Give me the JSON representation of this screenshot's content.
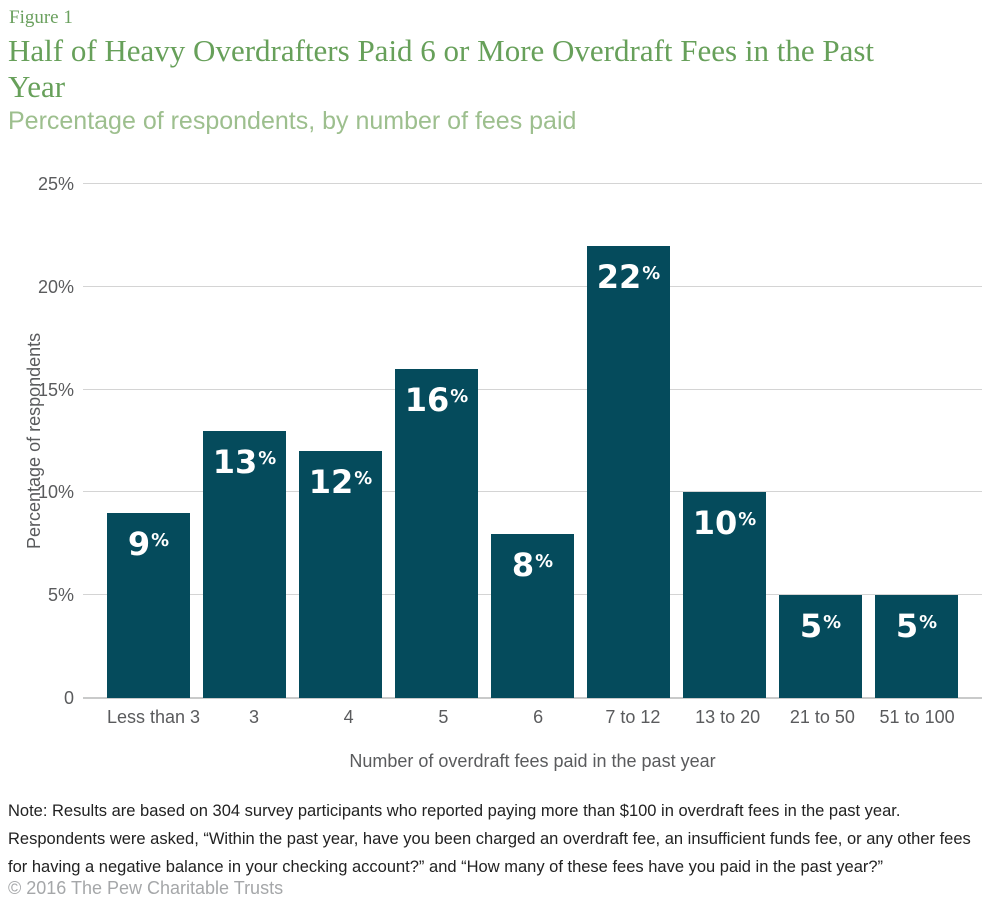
{
  "header": {
    "figure_label": "Figure 1",
    "title": "Half of Heavy Overdrafters Paid 6 or More Overdraft Fees in the Past Year",
    "subtitle": "Percentage of respondents, by number of fees paid"
  },
  "chart_data": {
    "type": "bar",
    "title": "Half of Heavy Overdrafters Paid 6 or More Overdraft Fees in the Past Year",
    "subtitle": "Percentage of respondents, by number of fees paid",
    "categories": [
      "Less than 3",
      "3",
      "4",
      "5",
      "6",
      "7 to 12",
      "13 to 20",
      "21 to 50",
      "51 to 100"
    ],
    "values": [
      9,
      13,
      12,
      16,
      8,
      22,
      10,
      5,
      5
    ],
    "value_suffix": "%",
    "xlabel": "Number of overdraft fees paid in the past year",
    "ylabel": "Percentage of respondents",
    "ylim": [
      0,
      25
    ],
    "yticks": [
      0,
      5,
      10,
      15,
      20,
      25
    ],
    "ytick_labels": [
      "0",
      "5%",
      "10%",
      "15%",
      "20%",
      "25%"
    ],
    "grid": "horizontal",
    "legend": "none",
    "bar_color": "#054b5c",
    "bar_label_color": "#ffffff",
    "gridline_color": "#d4d4d4",
    "axis_text_color": "#5a5b5d"
  },
  "footer": {
    "note": "Note: Results are based on 304 survey participants who reported paying more than $100 in overdraft fees in the past year. Respondents were asked, “Within the past year, have you been charged an overdraft fee, an insufficient funds fee, or any other fees for having a negative balance in your checking account?” and “How many of these fees have you paid in the past year?”",
    "copyright": "© 2016 The Pew Charitable Trusts"
  }
}
